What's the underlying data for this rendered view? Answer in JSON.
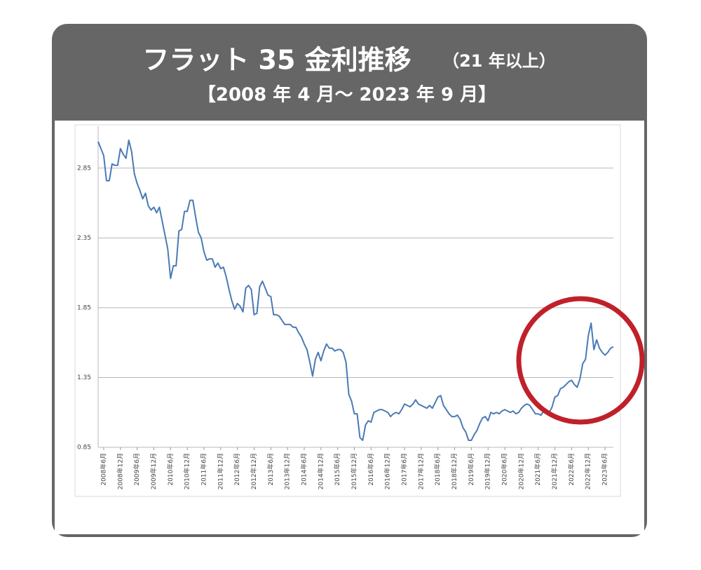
{
  "chart_data": {
    "type": "line",
    "title": "フラット 35 金利推移",
    "title_note": "（21 年以上）",
    "subtitle": "【2008 年 4 月～ 2023 年 9 月】",
    "color": "#4a7ab5",
    "ylim": [
      0.85,
      3.1
    ],
    "yticks": [
      0.85,
      1.35,
      1.85,
      2.35,
      2.85
    ],
    "grid": true,
    "categories": [
      null,
      null,
      "2008年6月",
      null,
      null,
      null,
      null,
      null,
      "2008年12月",
      null,
      null,
      null,
      null,
      null,
      "2009年6月",
      null,
      null,
      null,
      null,
      null,
      "2009年12月",
      null,
      null,
      null,
      null,
      null,
      "2010年6月",
      null,
      null,
      null,
      null,
      null,
      "2010年12月",
      null,
      null,
      null,
      null,
      null,
      "2011年6月",
      null,
      null,
      null,
      null,
      null,
      "2011年12月",
      null,
      null,
      null,
      null,
      null,
      "2012年6月",
      null,
      null,
      null,
      null,
      null,
      "2012年12月",
      null,
      null,
      null,
      null,
      null,
      "2013年6月",
      null,
      null,
      null,
      null,
      null,
      "2013年12月",
      null,
      null,
      null,
      null,
      null,
      "2014年6月",
      null,
      null,
      null,
      null,
      null,
      "2014年12月",
      null,
      null,
      null,
      null,
      null,
      "2015年6月",
      null,
      null,
      null,
      null,
      null,
      "2015年12月",
      null,
      null,
      null,
      null,
      null,
      "2016年6月",
      null,
      null,
      null,
      null,
      null,
      "2016年12月",
      null,
      null,
      null,
      null,
      null,
      "2017年6月",
      null,
      null,
      null,
      null,
      null,
      "2017年12月",
      null,
      null,
      null,
      null,
      null,
      "2018年6月",
      null,
      null,
      null,
      null,
      null,
      "2018年12月",
      null,
      null,
      null,
      null,
      null,
      "2019年6月",
      null,
      null,
      null,
      null,
      null,
      "2019年12月",
      null,
      null,
      null,
      null,
      null,
      "2020年6月",
      null,
      null,
      null,
      null,
      null,
      "2020年12月",
      null,
      null,
      null,
      null,
      null,
      "2021年6月",
      null,
      null,
      null,
      null,
      null,
      "2021年12月",
      null,
      null,
      null,
      null,
      null,
      "2022年6月",
      null,
      null,
      null,
      null,
      null,
      "2022年12月",
      null,
      null,
      null,
      null,
      null,
      "2023年6月",
      null,
      null,
      null
    ],
    "values": [
      3.04,
      2.99,
      2.94,
      2.76,
      2.76,
      2.88,
      2.87,
      2.87,
      2.99,
      2.95,
      2.92,
      3.05,
      2.97,
      2.81,
      2.74,
      2.69,
      2.63,
      2.67,
      2.58,
      2.55,
      2.57,
      2.53,
      2.57,
      2.47,
      2.37,
      2.27,
      2.06,
      2.15,
      2.15,
      2.4,
      2.41,
      2.54,
      2.54,
      2.62,
      2.62,
      2.5,
      2.39,
      2.35,
      2.25,
      2.19,
      2.2,
      2.2,
      2.14,
      2.17,
      2.13,
      2.14,
      2.07,
      1.98,
      1.9,
      1.84,
      1.88,
      1.86,
      1.82,
      1.99,
      2.01,
      1.98,
      1.8,
      1.81,
      2.0,
      2.04,
      1.99,
      1.94,
      1.93,
      1.8,
      1.8,
      1.79,
      1.76,
      1.73,
      1.73,
      1.73,
      1.71,
      1.71,
      1.67,
      1.64,
      1.59,
      1.55,
      1.46,
      1.36,
      1.48,
      1.53,
      1.47,
      1.54,
      1.59,
      1.56,
      1.56,
      1.54,
      1.55,
      1.55,
      1.53,
      1.46,
      1.23,
      1.18,
      1.09,
      1.09,
      0.92,
      0.9,
      1.01,
      1.04,
      1.03,
      1.1,
      1.11,
      1.12,
      1.12,
      1.11,
      1.1,
      1.07,
      1.09,
      1.1,
      1.09,
      1.12,
      1.16,
      1.15,
      1.14,
      1.16,
      1.19,
      1.16,
      1.15,
      1.14,
      1.13,
      1.15,
      1.13,
      1.17,
      1.21,
      1.22,
      1.15,
      1.12,
      1.09,
      1.07,
      1.07,
      1.08,
      1.05,
      0.99,
      0.96,
      0.9,
      0.9,
      0.94,
      0.97,
      1.02,
      1.06,
      1.07,
      1.04,
      1.1,
      1.09,
      1.1,
      1.09,
      1.11,
      1.12,
      1.11,
      1.1,
      1.11,
      1.09,
      1.1,
      1.13,
      1.15,
      1.16,
      1.15,
      1.12,
      1.09,
      1.09,
      1.08,
      1.11,
      1.12,
      1.1,
      1.14,
      1.21,
      1.22,
      1.27,
      1.28,
      1.3,
      1.32,
      1.33,
      1.3,
      1.28,
      1.34,
      1.45,
      1.48,
      1.65,
      1.74,
      1.55,
      1.62,
      1.56,
      1.53,
      1.51,
      1.53,
      1.56,
      1.57
    ]
  }
}
